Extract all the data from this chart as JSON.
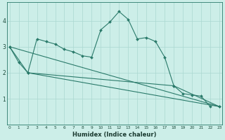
{
  "xlabel": "Humidex (Indice chaleur)",
  "x": [
    0,
    1,
    2,
    3,
    4,
    5,
    6,
    7,
    8,
    9,
    10,
    11,
    12,
    13,
    14,
    15,
    16,
    17,
    18,
    19,
    20,
    21,
    22,
    23
  ],
  "line1_x": [
    0,
    1,
    2,
    3,
    4,
    5,
    6,
    7,
    8,
    9,
    10,
    11,
    12,
    13,
    14,
    15,
    16,
    17,
    18,
    19,
    20,
    21,
    22
  ],
  "line1_y": [
    3.0,
    2.4,
    2.0,
    3.3,
    3.2,
    3.1,
    2.9,
    2.8,
    2.65,
    2.6,
    3.65,
    3.95,
    4.35,
    4.05,
    3.3,
    3.35,
    3.2,
    2.6,
    1.5,
    1.2,
    1.15,
    1.1,
    0.7
  ],
  "line2_x": [
    0,
    2,
    18,
    23
  ],
  "line2_y": [
    3.0,
    2.0,
    1.5,
    0.7
  ],
  "line3_x": [
    0,
    23
  ],
  "line3_y": [
    3.0,
    0.7
  ],
  "line4_x": [
    2,
    23
  ],
  "line4_y": [
    2.0,
    0.7
  ],
  "color": "#2a7a6a",
  "bg_color": "#cceee8",
  "grid_color": "#aad8d0",
  "ylim": [
    0,
    4.7
  ],
  "xlim": [
    -0.3,
    23.3
  ],
  "yticks": [
    1,
    2,
    3,
    4
  ],
  "xticks": [
    0,
    1,
    2,
    3,
    4,
    5,
    6,
    7,
    8,
    9,
    10,
    11,
    12,
    13,
    14,
    15,
    16,
    17,
    18,
    19,
    20,
    21,
    22,
    23
  ]
}
